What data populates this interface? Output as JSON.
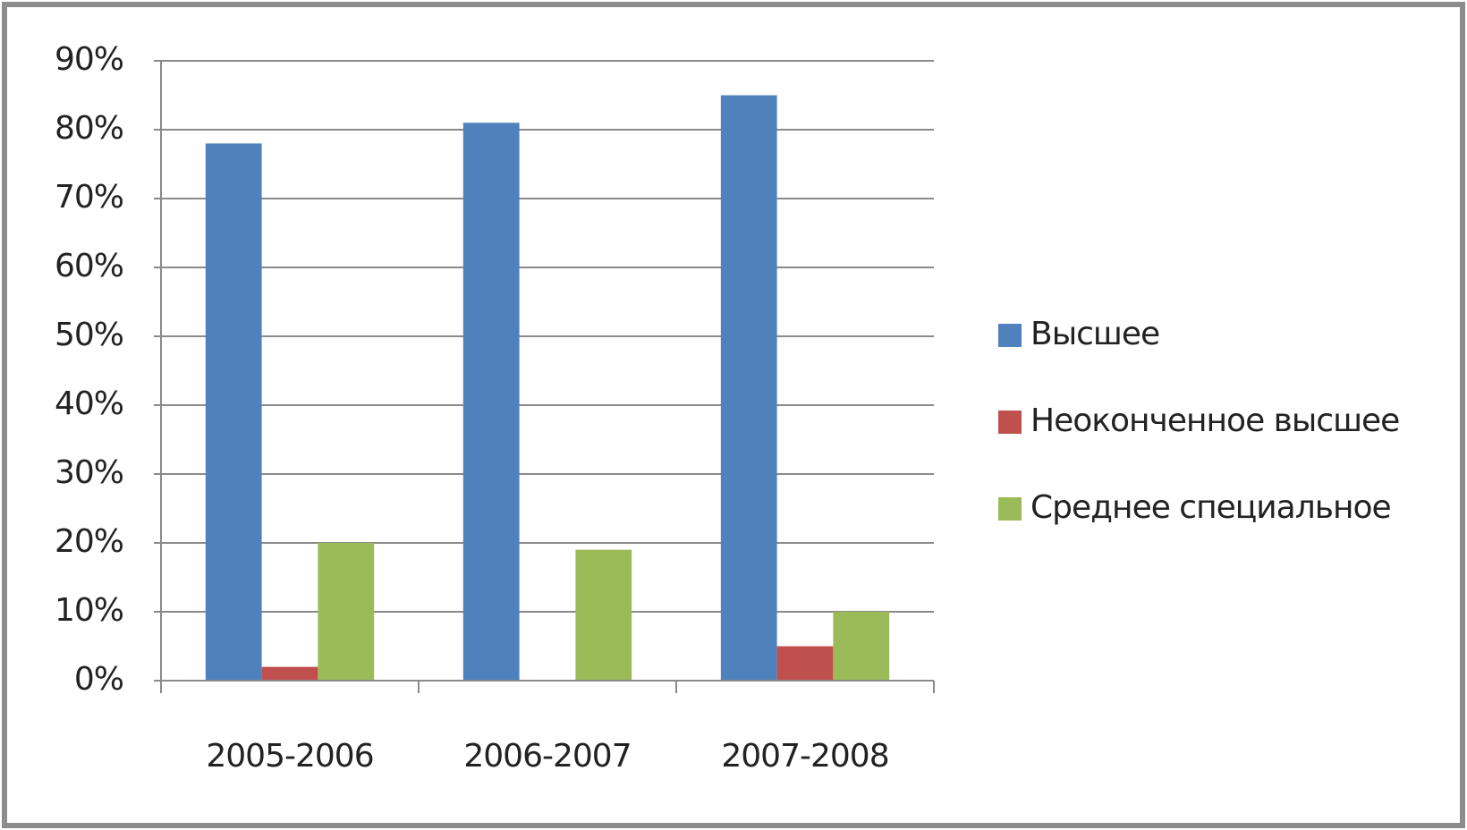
{
  "chart_data": {
    "type": "bar",
    "categories": [
      "2005-2006",
      "2006-2007",
      "2007-2008"
    ],
    "series": [
      {
        "name": "Высшее",
        "color": "#4f81bd",
        "values": [
          78,
          81,
          85
        ]
      },
      {
        "name": "Неоконченное высшее",
        "color": "#c0504d",
        "values": [
          2,
          0,
          5
        ]
      },
      {
        "name": "Среднее специальное",
        "color": "#9bbb59",
        "values": [
          20,
          19,
          10
        ]
      }
    ],
    "ylim": [
      0,
      90
    ],
    "yticks": [
      {
        "value": 0,
        "label": "0%"
      },
      {
        "value": 10,
        "label": "10%"
      },
      {
        "value": 20,
        "label": "20%"
      },
      {
        "value": 30,
        "label": "30%"
      },
      {
        "value": 40,
        "label": "40%"
      },
      {
        "value": 50,
        "label": "50%"
      },
      {
        "value": 60,
        "label": "60%"
      },
      {
        "value": 70,
        "label": "70%"
      },
      {
        "value": 80,
        "label": "80%"
      },
      {
        "value": 90,
        "label": "90%"
      }
    ],
    "grid": true,
    "legend": "right"
  }
}
